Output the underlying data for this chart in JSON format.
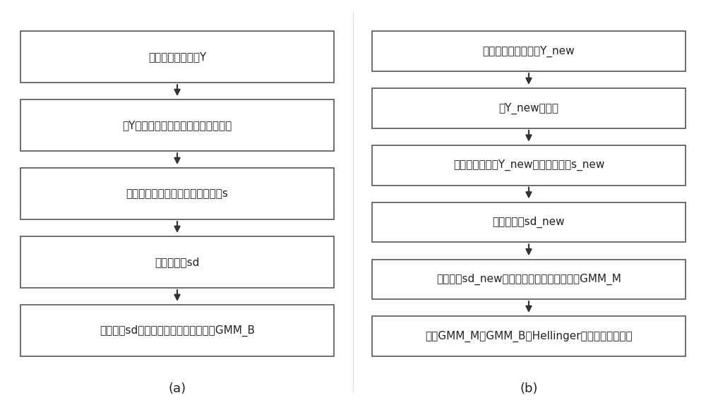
{
  "background_color": "#ffffff",
  "panel_a": {
    "label": "(a)",
    "boxes": [
      "获取正常训练数据Y",
      "对Y标准化，白化去除变量间的相关性",
      "计算慢特征转换矩阵，提取慢特征s",
      "划分慢特征sd",
      "对慢特征sd及其差分估计高斯混合模型GMM_B"
    ]
  },
  "panel_b": {
    "label": "(b)",
    "boxes": [
      "获取待评价过程数据Y_new",
      "对Y_new标准化",
      "利用转换矩阵从Y_new中提取慢特征s_new",
      "划分慢特征sd_new",
      "对慢特征sd_new及其差分估计高斯混合模型GMM_M",
      "计算GMM_M与GMM_B的Hellinger距离作为评价结果"
    ]
  },
  "box_edge_color": "#555555",
  "box_face_color": "#ffffff",
  "arrow_color": "#333333",
  "text_color": "#222222",
  "font_size": 11.0,
  "label_font_size": 13.0
}
